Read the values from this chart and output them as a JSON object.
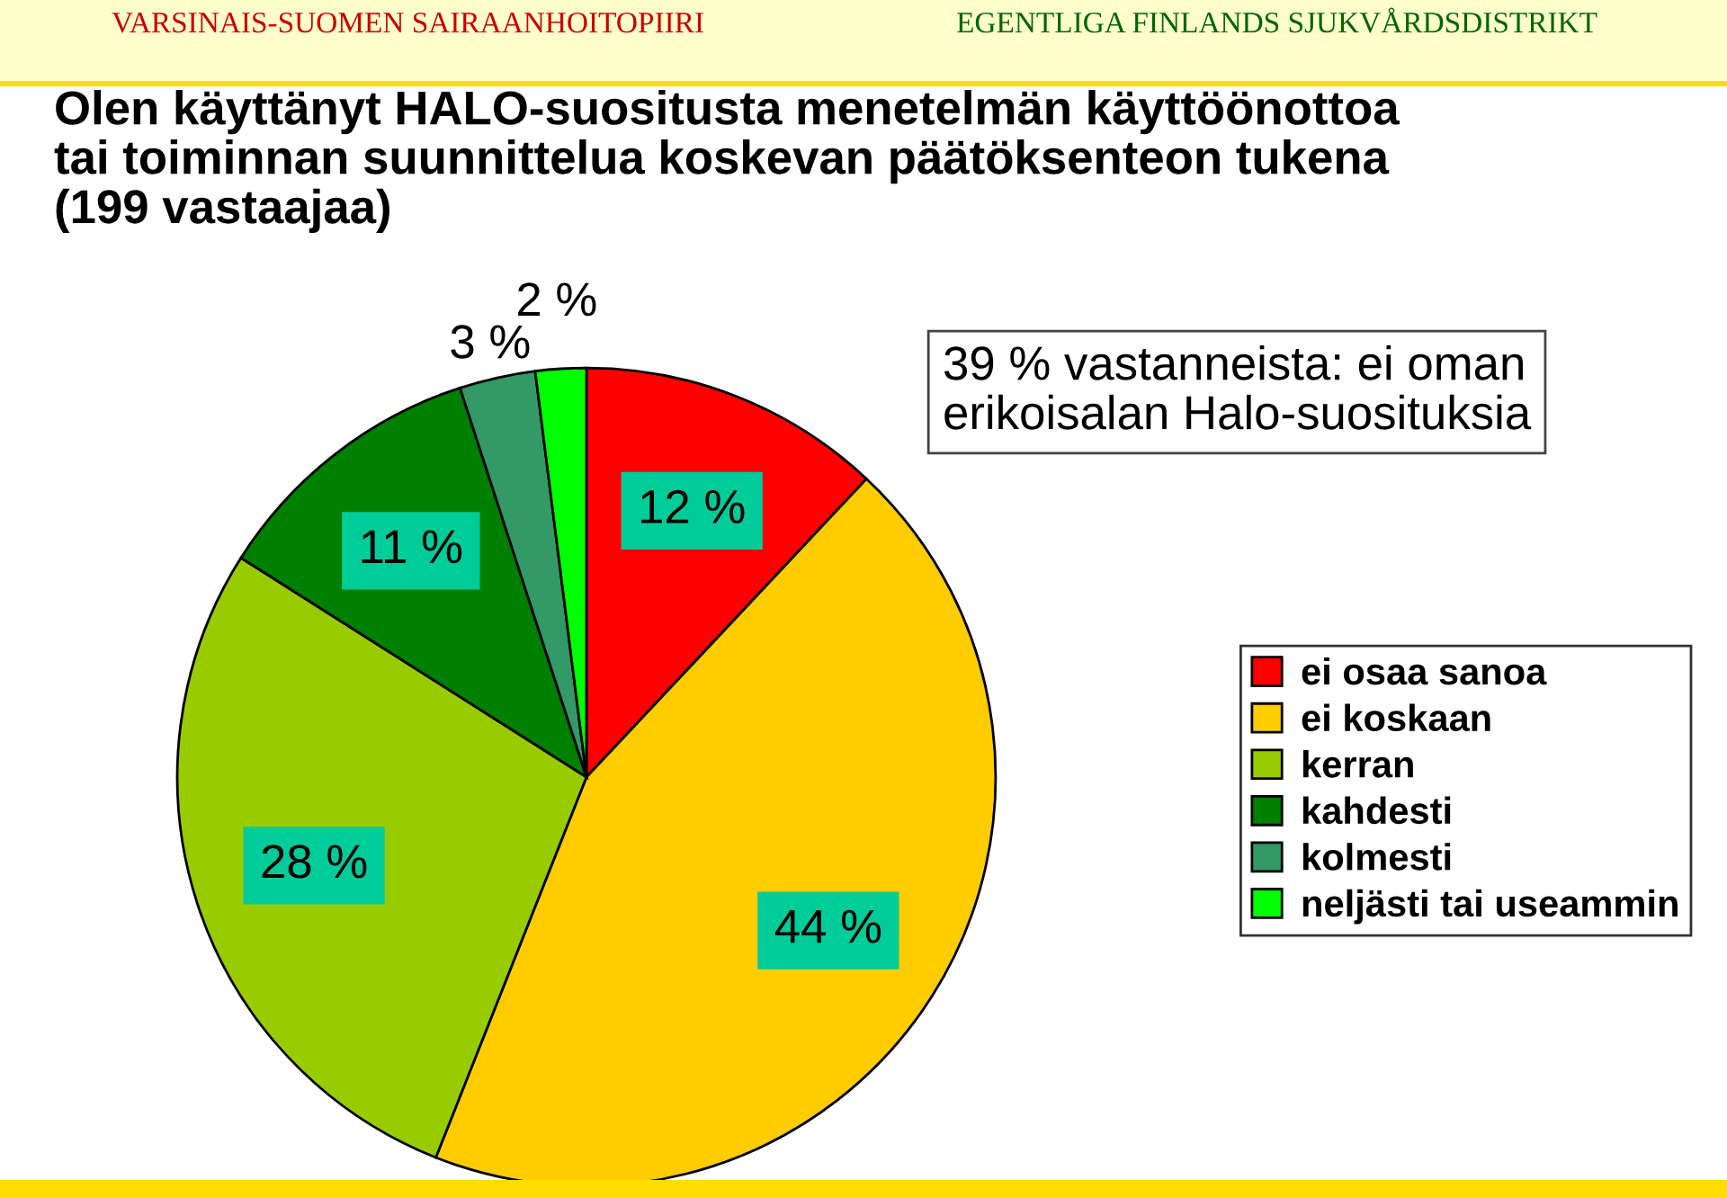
{
  "chart_data": {
    "type": "pie",
    "title": "Olen käyttänyt HALO-suositusta menetelmän käyttöönottoa\ntai toiminnan suunnittelua koskevan päätöksenteon tukena\n(199 vastaajaa)",
    "categories": [
      "ei osaa sanoa",
      "ei koskaan",
      "kerran",
      "kahdesti",
      "kolmesti",
      "neljästi tai useammin"
    ],
    "values": [
      12,
      44,
      28,
      11,
      3,
      2
    ],
    "colors": [
      "#ff0000",
      "#ffcc00",
      "#99cc00",
      "#008000",
      "#339966",
      "#00ff00"
    ],
    "value_labels": [
      "12 %",
      "44 %",
      "28 %",
      "11 %",
      "3 %",
      "2 %"
    ],
    "legend": "right",
    "annotations": [
      "VARSINAIS-SUOMEN SAIRAANHOITOPIIRI",
      "EGENTLIGA FINLANDS SJUKVÅRDSDISTRIKT",
      "39 % vastanneista: ei oman\nerikoisalan Halo-suosituksia"
    ]
  }
}
